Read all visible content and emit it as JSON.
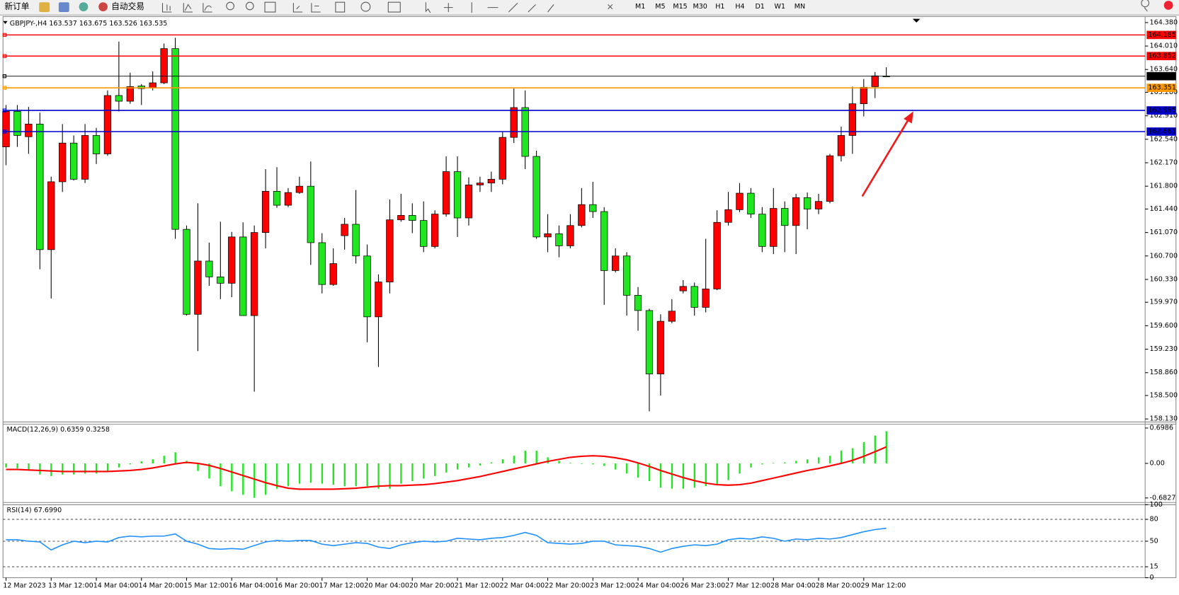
{
  "toolbar": {
    "buttons": [
      "新订单",
      "自动交易"
    ],
    "timeframes": [
      "M1",
      "M5",
      "M15",
      "M30",
      "H1",
      "H4",
      "D1",
      "W1",
      "MN"
    ]
  },
  "chart_data": [
    {
      "type": "candlestick",
      "title": "GBPJPY-,H4",
      "categories": [
        "12 Mar 2023",
        null,
        null,
        null,
        "13 Mar 12:00",
        null,
        null,
        null,
        "14 Mar 04:00",
        null,
        null,
        null,
        "14 Mar 20:00",
        null,
        null,
        null,
        "15 Mar 12:00",
        null,
        null,
        null,
        "16 Mar 04:00",
        null,
        null,
        null,
        "16 Mar 20:00",
        null,
        null,
        null,
        "17 Mar 12:00",
        null,
        null,
        null,
        "20 Mar 04:00",
        null,
        null,
        null,
        "20 Mar 20:00",
        null,
        null,
        null,
        "21 Mar 12:00",
        null,
        null,
        null,
        "22 Mar 04:00",
        null,
        null,
        null,
        "22 Mar 20:00",
        null,
        null,
        null,
        "23 Mar 12:00",
        null,
        null,
        null,
        "24 Mar 04:00",
        null,
        null,
        null,
        "26 Mar 23:00",
        null,
        null,
        null,
        "27 Mar 12:00",
        null,
        null,
        null,
        "28 Mar 04:00",
        null,
        null,
        null,
        "28 Mar 20:00",
        null,
        null,
        null,
        "29 Mar 12:00",
        null,
        null
      ],
      "open": [
        162.42,
        162.98,
        162.58,
        162.78,
        160.8,
        161.87,
        162.48,
        161.91,
        162.6,
        162.31,
        163.23,
        163.14,
        163.38,
        163.35,
        163.43,
        163.97,
        161.12,
        159.78,
        160.62,
        160.37,
        160.27,
        161.0,
        159.76,
        161.07,
        161.72,
        161.5,
        161.7,
        161.8,
        160.91,
        160.25,
        161.02,
        161.2,
        160.7,
        159.74,
        160.29,
        161.27,
        161.34,
        161.26,
        160.85,
        161.36,
        162.03,
        161.3,
        161.82,
        161.85,
        161.91,
        162.57,
        163.04,
        162.27,
        161.0,
        161.05,
        160.86,
        161.18,
        161.51,
        161.4,
        160.47,
        160.7,
        160.08,
        159.84,
        158.84,
        159.67,
        160.15,
        160.22,
        159.89,
        160.18,
        161.23,
        161.43,
        161.69,
        161.36,
        160.85,
        161.45,
        161.18,
        161.62,
        161.44,
        161.56,
        162.28,
        162.6,
        163.1,
        163.37,
        163.537
      ],
      "high": [
        163.08,
        163.08,
        163.05,
        162.96,
        161.95,
        162.78,
        162.6,
        162.78,
        162.72,
        163.31,
        164.08,
        163.59,
        163.41,
        163.61,
        164.05,
        164.14,
        161.18,
        161.53,
        160.91,
        161.24,
        161.08,
        161.23,
        161.18,
        162.07,
        162.1,
        161.77,
        161.95,
        162.19,
        161.06,
        160.82,
        161.3,
        161.74,
        160.88,
        160.41,
        161.59,
        161.68,
        161.53,
        161.56,
        161.42,
        162.27,
        162.27,
        161.94,
        161.95,
        162.03,
        162.66,
        163.34,
        163.31,
        162.36,
        161.36,
        161.18,
        161.36,
        161.77,
        161.87,
        161.47,
        160.82,
        160.76,
        160.21,
        159.87,
        159.78,
        160.02,
        160.32,
        160.28,
        160.97,
        161.42,
        161.71,
        161.85,
        161.77,
        161.47,
        161.77,
        161.56,
        161.68,
        161.7,
        161.68,
        162.31,
        162.74,
        163.37,
        163.49,
        163.6,
        163.675
      ],
      "low": [
        162.13,
        162.42,
        162.31,
        160.49,
        160.03,
        161.71,
        161.89,
        161.85,
        162.15,
        162.28,
        162.98,
        163.1,
        163.08,
        163.31,
        163.41,
        160.97,
        159.76,
        159.2,
        160.23,
        160.02,
        160.05,
        159.76,
        158.56,
        160.82,
        161.46,
        161.47,
        161.68,
        160.56,
        160.11,
        160.23,
        160.8,
        160.58,
        159.34,
        158.95,
        160.11,
        161.24,
        161.06,
        160.76,
        160.82,
        161.32,
        161.0,
        161.18,
        161.71,
        161.71,
        161.83,
        162.48,
        162.07,
        160.97,
        160.76,
        160.68,
        160.82,
        161.15,
        161.3,
        159.93,
        160.44,
        159.76,
        159.52,
        158.25,
        158.5,
        159.64,
        160.11,
        159.76,
        159.81,
        160.16,
        161.18,
        161.39,
        161.3,
        160.76,
        160.73,
        160.76,
        160.73,
        161.12,
        161.36,
        161.53,
        162.19,
        162.31,
        162.9,
        163.19,
        163.526
      ],
      "close": [
        162.98,
        162.6,
        162.78,
        160.8,
        161.87,
        162.48,
        161.91,
        162.6,
        162.31,
        163.23,
        163.14,
        163.37,
        163.34,
        163.43,
        163.97,
        161.12,
        159.78,
        160.62,
        160.37,
        160.27,
        161.0,
        159.76,
        161.07,
        161.72,
        161.5,
        161.7,
        161.8,
        160.91,
        160.25,
        160.58,
        161.2,
        160.7,
        159.74,
        160.29,
        161.27,
        161.34,
        161.26,
        160.85,
        161.36,
        162.03,
        161.3,
        161.82,
        161.85,
        161.91,
        162.57,
        163.04,
        162.27,
        161.0,
        161.05,
        160.86,
        161.18,
        161.51,
        161.4,
        160.47,
        160.7,
        160.08,
        159.84,
        158.84,
        159.67,
        159.83,
        160.22,
        159.89,
        160.18,
        161.23,
        161.43,
        161.69,
        161.36,
        160.85,
        161.45,
        161.18,
        161.62,
        161.44,
        161.56,
        162.28,
        162.6,
        163.1,
        163.36,
        163.54,
        163.535
      ],
      "up_color": "#ff0000",
      "down_color": "#1fe61f",
      "ylim": [
        158.106,
        164.475
      ],
      "yticks": [
        {
          "value": 164.38,
          "label": "164.380"
        },
        {
          "value": 164.01,
          "label": "164.010"
        },
        {
          "value": 163.64,
          "label": "163.640"
        },
        {
          "value": 163.28,
          "label": "163.280"
        },
        {
          "value": 162.91,
          "label": "162.910"
        },
        {
          "value": 162.54,
          "label": "162.540"
        },
        {
          "value": 162.17,
          "label": "162.170"
        },
        {
          "value": 161.8,
          "label": "161.800"
        },
        {
          "value": 161.44,
          "label": "161.440"
        },
        {
          "value": 161.07,
          "label": "161.070"
        },
        {
          "value": 160.7,
          "label": "160.700"
        },
        {
          "value": 160.33,
          "label": "160.330"
        },
        {
          "value": 159.97,
          "label": "159.970"
        },
        {
          "value": 159.6,
          "label": "159.600"
        },
        {
          "value": 159.23,
          "label": "159.230"
        },
        {
          "value": 158.86,
          "label": "158.860"
        },
        {
          "value": 158.5,
          "label": "158.500"
        },
        {
          "value": 158.13,
          "label": "158.130"
        }
      ],
      "levels": [
        {
          "value": 164.185,
          "color": "#ff0000"
        },
        {
          "value": 163.852,
          "color": "#ff0000"
        },
        {
          "value": 163.535,
          "color": "#000000"
        },
        {
          "value": 163.351,
          "color": "#ff9900"
        },
        {
          "value": 162.995,
          "color": "#0000cc"
        },
        {
          "value": 162.661,
          "color": "#0000cc"
        }
      ]
    },
    {
      "type": "combo",
      "title": "MACD(12,26,9)",
      "series": [
        {
          "type": "bar",
          "color": "#1fe61f",
          "values": [
            -0.08,
            -0.1,
            -0.12,
            -0.22,
            -0.25,
            -0.22,
            -0.22,
            -0.2,
            -0.2,
            -0.15,
            -0.08,
            -0.02,
            0.04,
            0.08,
            0.15,
            0.22,
            0.05,
            -0.15,
            -0.3,
            -0.45,
            -0.55,
            -0.62,
            -0.68,
            -0.62,
            -0.5,
            -0.45,
            -0.4,
            -0.38,
            -0.4,
            -0.42,
            -0.45,
            -0.45,
            -0.45,
            -0.5,
            -0.5,
            -0.4,
            -0.35,
            -0.3,
            -0.25,
            -0.18,
            -0.12,
            -0.08,
            -0.04,
            0.02,
            0.08,
            0.15,
            0.25,
            0.25,
            0.12,
            0.05,
            0.01,
            -0.01,
            -0.02,
            -0.05,
            -0.12,
            -0.2,
            -0.28,
            -0.35,
            -0.48,
            -0.5,
            -0.5,
            -0.48,
            -0.45,
            -0.42,
            -0.33,
            -0.2,
            -0.08,
            -0.02,
            0.01,
            0.02,
            0.05,
            0.08,
            0.12,
            0.15,
            0.25,
            0.3,
            0.42,
            0.55,
            0.6359
          ]
        },
        {
          "type": "line",
          "color": "#ff0000",
          "values": [
            -0.12,
            -0.12,
            -0.13,
            -0.14,
            -0.15,
            -0.16,
            -0.16,
            -0.16,
            -0.16,
            -0.16,
            -0.15,
            -0.14,
            -0.12,
            -0.09,
            -0.05,
            -0.01,
            0.02,
            0.0,
            -0.04,
            -0.1,
            -0.17,
            -0.24,
            -0.31,
            -0.38,
            -0.44,
            -0.49,
            -0.51,
            -0.51,
            -0.51,
            -0.51,
            -0.5,
            -0.49,
            -0.47,
            -0.45,
            -0.44,
            -0.44,
            -0.43,
            -0.42,
            -0.4,
            -0.37,
            -0.34,
            -0.3,
            -0.26,
            -0.21,
            -0.16,
            -0.11,
            -0.06,
            -0.01,
            0.04,
            0.08,
            0.12,
            0.14,
            0.15,
            0.14,
            0.11,
            0.07,
            0.01,
            -0.06,
            -0.14,
            -0.21,
            -0.28,
            -0.34,
            -0.39,
            -0.42,
            -0.43,
            -0.42,
            -0.39,
            -0.34,
            -0.29,
            -0.24,
            -0.19,
            -0.14,
            -0.1,
            -0.05,
            0.0,
            0.06,
            0.14,
            0.23,
            0.3258
          ]
        }
      ],
      "ylim": [
        -0.772,
        0.773
      ],
      "yticks": [
        0.6986,
        {
          "value": 0,
          "label": "0.00"
        },
        -0.6827
      ]
    },
    {
      "type": "line",
      "title": "RSI(14)",
      "current_value_label": "67.6990",
      "series": [
        {
          "color": "#1e90ff",
          "values": [
            52,
            52,
            50,
            49,
            38,
            45,
            50,
            48,
            50,
            49,
            55,
            57,
            56,
            57,
            57,
            60,
            50,
            46,
            40,
            39,
            40,
            39,
            44,
            49,
            51,
            50,
            51,
            51,
            46,
            44,
            46,
            48,
            47,
            42,
            40,
            45,
            48,
            50,
            49,
            50,
            54,
            53,
            52,
            54,
            55,
            58,
            62,
            58,
            48,
            47,
            46,
            47,
            50,
            50,
            45,
            44,
            43,
            40,
            35,
            40,
            43,
            45,
            44,
            46,
            52,
            54,
            53,
            56,
            54,
            50,
            53,
            52,
            54,
            53,
            55,
            59,
            63,
            66,
            67.699
          ]
        }
      ],
      "ylim": [
        0,
        100
      ],
      "yticks": [
        100,
        80,
        50,
        15,
        0
      ]
    }
  ]
}
